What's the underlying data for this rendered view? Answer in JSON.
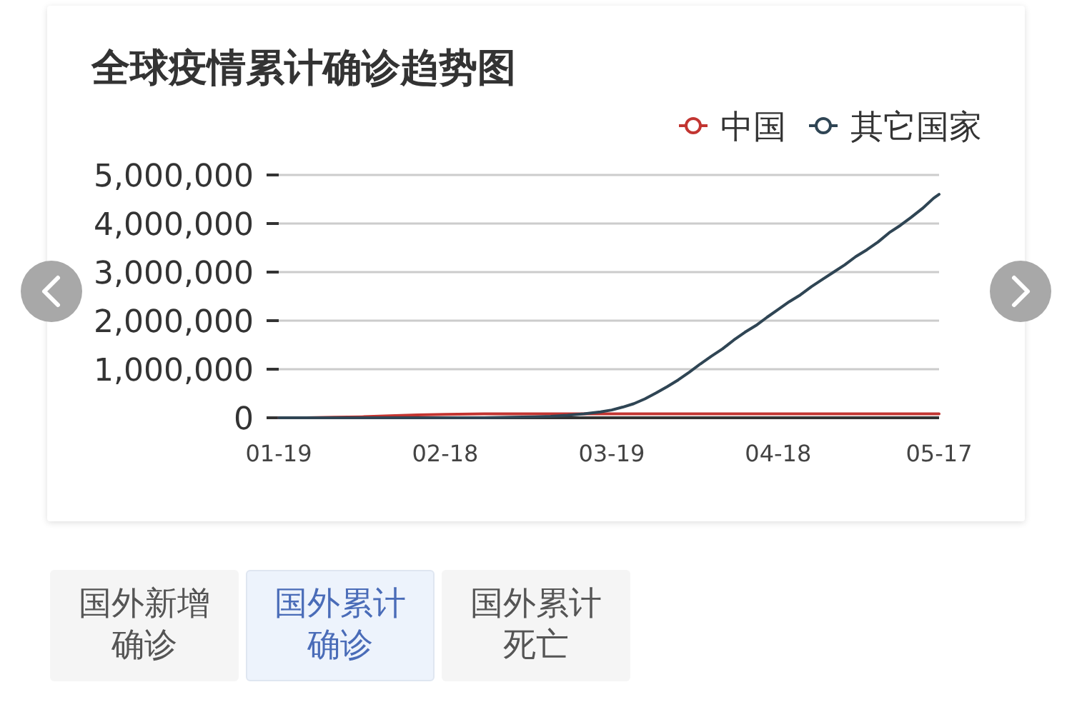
{
  "chart_data": {
    "type": "line",
    "title": "全球疫情累计确诊趋势图",
    "series": [
      {
        "name": "中国",
        "color": "#c23531",
        "x": [
          "--01-19",
          "--01-24",
          "--01-29",
          "--02-03",
          "--02-08",
          "--02-13",
          "--02-18",
          "--02-25",
          "--03-05",
          "--03-19",
          "--04-18",
          "--05-17"
        ],
        "values": [
          0,
          0,
          10000,
          20000,
          40000,
          60000,
          70000,
          80000,
          80000,
          80000,
          80000,
          80000
        ]
      },
      {
        "name": "其它国家",
        "color": "#2f4554",
        "x": [
          "--01-19",
          "--02-08",
          "--02-18",
          "--02-25",
          "--03-01",
          "--03-05",
          "--03-08",
          "--03-11",
          "--03-14",
          "--03-17",
          "--03-19",
          "--03-21",
          "--03-23",
          "--03-25",
          "--03-27",
          "--03-29",
          "--03-31",
          "--04-02",
          "--04-04",
          "--04-06",
          "--04-08",
          "--04-10",
          "--04-12",
          "--04-14",
          "--04-16",
          "--04-18",
          "--04-20",
          "--04-22",
          "--04-24",
          "--04-26",
          "--04-28",
          "--04-30",
          "--05-02",
          "--05-04",
          "--05-06",
          "--05-08",
          "--05-10",
          "--05-12",
          "--05-14",
          "--05-16",
          "--05-17"
        ],
        "values": [
          0,
          0,
          0,
          0,
          10000,
          20000,
          30000,
          50000,
          80000,
          120000,
          160000,
          220000,
          290000,
          390000,
          510000,
          640000,
          780000,
          940000,
          1110000,
          1270000,
          1420000,
          1600000,
          1760000,
          1900000,
          2070000,
          2230000,
          2390000,
          2530000,
          2700000,
          2850000,
          3000000,
          3150000,
          3320000,
          3460000,
          3620000,
          3810000,
          3960000,
          4130000,
          4310000,
          4520000,
          4600000
        ]
      }
    ],
    "xlim": [
      "--01-19",
      "--05-17"
    ],
    "xticks": [
      {
        "value": "--01-19",
        "label": "01-19"
      },
      {
        "value": "--02-18",
        "label": "02-18"
      },
      {
        "value": "--03-19",
        "label": "03-19"
      },
      {
        "value": "--04-18",
        "label": "04-18"
      },
      {
        "value": "--05-17",
        "label": "05-17"
      }
    ],
    "ylim": [
      0,
      5000000
    ],
    "yticks": [
      0,
      {
        "value": 1000000,
        "label": "1,000,000"
      },
      {
        "value": 2000000,
        "label": "2,000,000"
      },
      {
        "value": 3000000,
        "label": "3,000,000"
      },
      {
        "value": 4000000,
        "label": "4,000,000"
      },
      {
        "value": 5000000,
        "label": "5,000,000"
      }
    ],
    "grid": "y",
    "legend": "top right",
    "annotations": [
      "国外新增确诊",
      "国外累计确诊",
      "国外累计死亡"
    ]
  }
}
